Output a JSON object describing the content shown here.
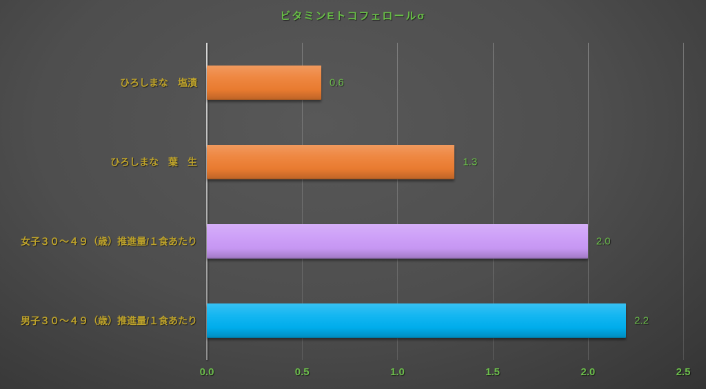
{
  "chart_data": {
    "type": "bar",
    "orientation": "horizontal",
    "title": "ビタミンEトコフェロールσ",
    "categories": [
      "ひろしまな　塩漬",
      "ひろしまな　葉　生",
      "女子３０～４９（歳）推進量/１食あたり",
      "男子３０～４９（歳）推進量/１食あたり"
    ],
    "values": [
      0.6,
      1.3,
      2.0,
      2.2
    ],
    "value_labels": [
      "0.6",
      "1.3",
      "2.0",
      "2.2"
    ],
    "bar_colors": [
      "#ED7D31",
      "#ED7D31",
      "#CA99F7",
      "#00B0F0"
    ],
    "xlabel": "",
    "ylabel": "",
    "xlim": [
      0.0,
      2.5
    ],
    "xticks": [
      0.0,
      0.5,
      1.0,
      1.5,
      2.0,
      2.5
    ],
    "xtick_labels": [
      "0.0",
      "0.5",
      "1.0",
      "1.5",
      "2.0",
      "2.5"
    ],
    "grid": "vertical-gridlines-on",
    "legend": "none",
    "colors": {
      "background_center": "#585858",
      "background_edge": "#2d2d2d",
      "title_text": "#68BE47",
      "category_text": "#BDA22B",
      "value_text": "#6CBE4B",
      "tick_text": "#6CBE4B",
      "axis_line": "#BFBFBF",
      "gridline": "#757575"
    }
  }
}
